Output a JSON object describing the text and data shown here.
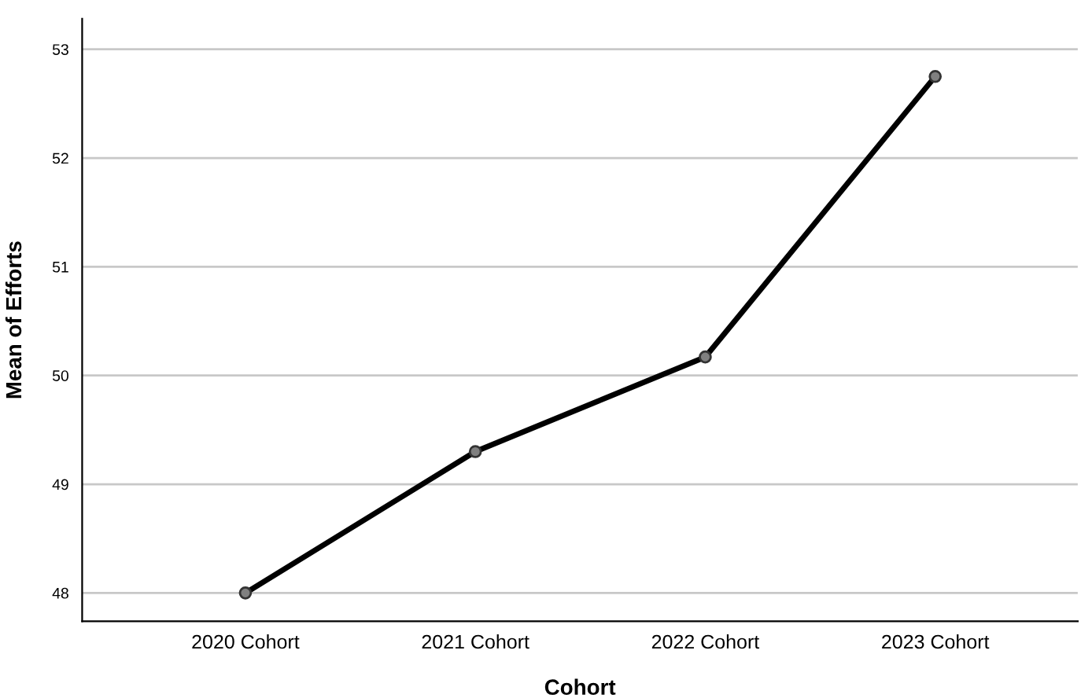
{
  "chart_data": {
    "type": "line",
    "xlabel": "Cohort",
    "ylabel": "Mean of Efforts",
    "categories": [
      "2020 Cohort",
      "2021 Cohort",
      "2022 Cohort",
      "2023 Cohort"
    ],
    "series": [
      {
        "color": "#000000",
        "values": [
          48.0,
          49.3,
          50.17,
          52.75
        ]
      }
    ],
    "ylim": [
      47.74,
      53.28
    ],
    "yticks": [
      48,
      49,
      50,
      51,
      52,
      53
    ],
    "grid": "y",
    "marker": "circle",
    "line_style": "solid",
    "legend": false
  }
}
